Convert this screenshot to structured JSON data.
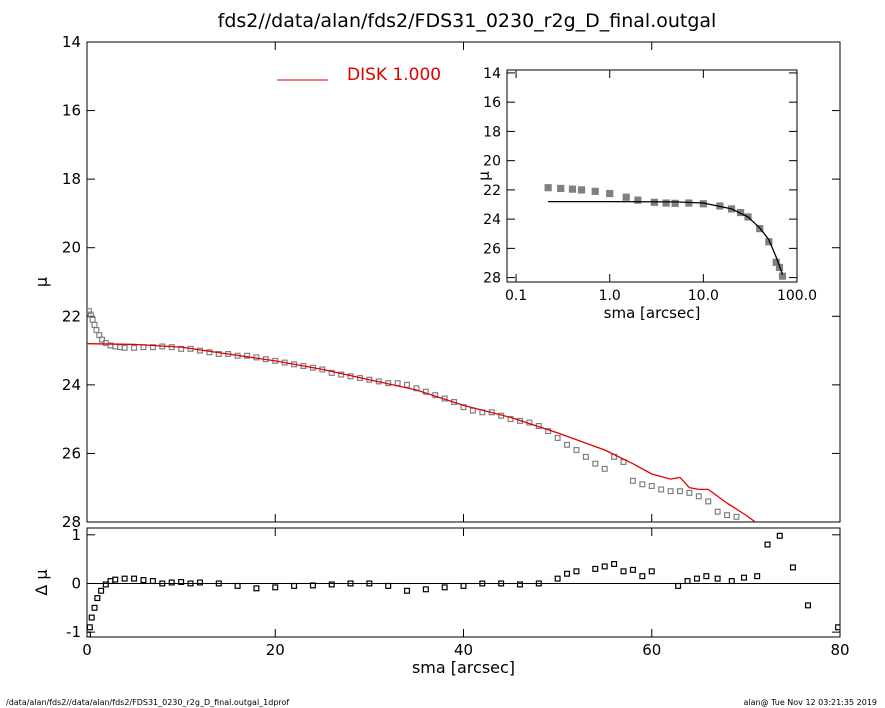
{
  "chart_data": [
    {
      "type": "profile",
      "title": "fds2//data/alan/fds2/FDS31_0230_r2g_D_final.outgal",
      "y_label": "μ",
      "xlim": [
        0,
        80
      ],
      "ylim": [
        28,
        14
      ],
      "yticks": [
        14,
        16,
        18,
        20,
        22,
        24,
        26,
        28
      ],
      "series": [
        {
          "kind": "scatter",
          "color": "#808080",
          "x": [
            0.2,
            0.4,
            0.6,
            0.8,
            1.0,
            1.3,
            1.6,
            2.0,
            2.5,
            3.0,
            3.5,
            4.0,
            5.0,
            6.0,
            7.0,
            8.0,
            9.0,
            10,
            11,
            12,
            13,
            14,
            15,
            16,
            17,
            18,
            19,
            20,
            21,
            22,
            23,
            24,
            25,
            26,
            27,
            28,
            29,
            30,
            31,
            32,
            33,
            34,
            35,
            36,
            37,
            38,
            39,
            40,
            41,
            42,
            43,
            44,
            45,
            46,
            47,
            48,
            49,
            50,
            51,
            52,
            53,
            54,
            55,
            56,
            57,
            58,
            59,
            60,
            61,
            62,
            63,
            64,
            65,
            66,
            67,
            68,
            69
          ],
          "values": [
            21.85,
            21.95,
            22.1,
            22.25,
            22.4,
            22.55,
            22.68,
            22.78,
            22.85,
            22.88,
            22.9,
            22.92,
            22.92,
            22.9,
            22.9,
            22.88,
            22.9,
            22.95,
            22.95,
            23.0,
            23.05,
            23.1,
            23.1,
            23.15,
            23.15,
            23.2,
            23.25,
            23.3,
            23.35,
            23.4,
            23.45,
            23.5,
            23.55,
            23.65,
            23.7,
            23.75,
            23.8,
            23.85,
            23.9,
            23.95,
            23.95,
            24.0,
            24.1,
            24.2,
            24.3,
            24.4,
            24.5,
            24.65,
            24.75,
            24.8,
            24.8,
            24.9,
            25.0,
            25.05,
            25.1,
            25.2,
            25.35,
            25.55,
            25.75,
            25.9,
            26.1,
            26.3,
            26.45,
            26.1,
            26.25,
            26.8,
            26.9,
            26.95,
            27.05,
            27.1,
            27.1,
            27.15,
            27.25,
            27.4,
            27.7,
            27.8,
            27.85
          ]
        },
        {
          "kind": "line",
          "name": "DISK  1.000",
          "color": "#e00000",
          "x": [
            0,
            5,
            10,
            15,
            20,
            25,
            30,
            35,
            40,
            45,
            50,
            55,
            58,
            60,
            62,
            63,
            64,
            65,
            66,
            68,
            70,
            71
          ],
          "values": [
            22.8,
            22.82,
            22.9,
            23.1,
            23.3,
            23.55,
            23.85,
            24.15,
            24.6,
            24.95,
            25.4,
            25.9,
            26.3,
            26.6,
            26.75,
            26.7,
            27.0,
            27.05,
            27.05,
            27.45,
            27.8,
            28.0
          ]
        }
      ]
    },
    {
      "type": "residual",
      "x_label": "sma [arcsec]",
      "y_label": "Δ μ",
      "xlim": [
        0,
        80
      ],
      "xticks": [
        0,
        20,
        40,
        60,
        80
      ],
      "ylim": [
        -1.1,
        1.14
      ],
      "yticks": [
        -1,
        0,
        1
      ],
      "hline": 0,
      "series": [
        {
          "kind": "scatter",
          "color": "#000000",
          "x": [
            0.1,
            0.3,
            0.5,
            0.8,
            1.1,
            1.5,
            2,
            2.5,
            3,
            4,
            5,
            6,
            7,
            8,
            9,
            10,
            11,
            12,
            14,
            16,
            18,
            20,
            22,
            24,
            26,
            28,
            30,
            32,
            34,
            36,
            38,
            40,
            42,
            44,
            46,
            48,
            50,
            51,
            52,
            54,
            55,
            56,
            57,
            58,
            59,
            60,
            62.8,
            63.8,
            64.8,
            65.8,
            67,
            68.5,
            69.8,
            71.2,
            72.3,
            73.6,
            75,
            76.6,
            79.8
          ],
          "values": [
            -1.05,
            -0.9,
            -0.7,
            -0.5,
            -0.3,
            -0.15,
            -0.02,
            0.05,
            0.08,
            0.1,
            0.1,
            0.07,
            0.05,
            0.0,
            0.02,
            0.03,
            0.0,
            0.02,
            0.0,
            -0.05,
            -0.1,
            -0.08,
            -0.05,
            -0.04,
            -0.02,
            0.0,
            0.0,
            -0.05,
            -0.15,
            -0.12,
            -0.08,
            -0.05,
            0.0,
            0.0,
            -0.02,
            0.0,
            0.1,
            0.2,
            0.25,
            0.3,
            0.35,
            0.4,
            0.25,
            0.28,
            0.15,
            0.25,
            -0.05,
            0.05,
            0.1,
            0.15,
            0.1,
            0.05,
            0.12,
            0.15,
            0.8,
            0.98,
            0.33,
            -0.45,
            -0.9
          ]
        }
      ]
    },
    {
      "type": "inset",
      "x_label": "sma [arcsec]",
      "y_label": "μ",
      "log_x": true,
      "xlim": [
        0.08,
        100
      ],
      "xticks": [
        0.1,
        {
          "value": 1,
          "label": "1.0"
        },
        {
          "value": 10,
          "label": "10.0"
        },
        {
          "value": 100,
          "label": "100.0"
        }
      ],
      "ylim": [
        28.3,
        13.8
      ],
      "yticks": [
        14,
        16,
        18,
        20,
        22,
        24,
        26,
        28
      ],
      "series": [
        {
          "kind": "scatter",
          "color": "#808080",
          "x": [
            0.22,
            0.3,
            0.4,
            0.5,
            0.7,
            1.0,
            1.5,
            2,
            3,
            4,
            5,
            7,
            10,
            15,
            20,
            25,
            30,
            40,
            50,
            60,
            65,
            70
          ],
          "values": [
            21.85,
            21.9,
            21.95,
            22.0,
            22.1,
            22.25,
            22.5,
            22.7,
            22.85,
            22.9,
            22.92,
            22.9,
            22.95,
            23.1,
            23.3,
            23.55,
            23.85,
            24.65,
            25.55,
            26.95,
            27.3,
            27.9
          ]
        },
        {
          "kind": "line",
          "color": "#000000",
          "x": [
            0.22,
            1,
            5,
            10,
            20,
            30,
            40,
            50,
            60,
            70
          ],
          "values": [
            22.8,
            22.8,
            22.82,
            22.9,
            23.3,
            23.85,
            24.6,
            25.4,
            26.6,
            27.8
          ]
        }
      ]
    }
  ],
  "footer": {
    "left": "/data/alan/fds2//data/alan/fds2/FDS31_0230_r2g_D_final.outgal_1dprof",
    "right": "alan@  Tue Nov 12 03:21:35 2019"
  }
}
